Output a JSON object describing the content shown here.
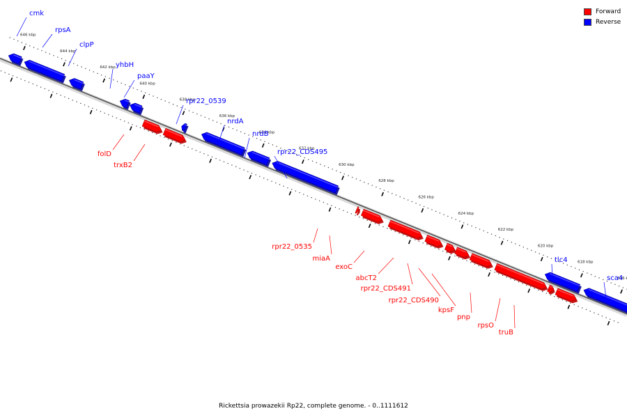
{
  "caption": "Rickettsia prowazekii Rp22, complete genome. - 0..1111612",
  "legend": [
    {
      "label": "Forward",
      "color": "#ff0000"
    },
    {
      "label": "Reverse",
      "color": "#0000ff"
    }
  ],
  "colors": {
    "forward": "#ff0000",
    "reverse": "#0000ff",
    "axis": "#555555"
  },
  "ticks": [
    {
      "kbp": 646,
      "label": "646 kbp"
    },
    {
      "kbp": 644,
      "label": "644 kbp"
    },
    {
      "kbp": 642,
      "label": "642 kbp"
    },
    {
      "kbp": 640,
      "label": "640 kbp"
    },
    {
      "kbp": 638,
      "label": "638 kbp"
    },
    {
      "kbp": 636,
      "label": "636 kbp"
    },
    {
      "kbp": 634,
      "label": "634 kbp"
    },
    {
      "kbp": 632,
      "label": "632 kbp"
    },
    {
      "kbp": 630,
      "label": "630 kbp"
    },
    {
      "kbp": 628,
      "label": "628 kbp"
    },
    {
      "kbp": 626,
      "label": "626 kbp"
    },
    {
      "kbp": 624,
      "label": "624 kbp"
    },
    {
      "kbp": 622,
      "label": "622 kbp"
    },
    {
      "kbp": 620,
      "label": "620 kbp"
    },
    {
      "kbp": 618,
      "label": "618 kbp"
    },
    {
      "kbp": 616,
      "label": "616 kbp"
    }
  ],
  "genes": [
    {
      "name": "cmk",
      "strand": "reverse",
      "start_kbp": 646.55,
      "end_kbp": 645.95
    },
    {
      "name": "rpsA",
      "strand": "reverse",
      "start_kbp": 645.75,
      "end_kbp": 643.8
    },
    {
      "name": "clpP",
      "strand": "reverse",
      "start_kbp": 643.5,
      "end_kbp": 642.85
    },
    {
      "name": "yhbH",
      "strand": "reverse",
      "start_kbp": 640.95,
      "end_kbp": 640.55
    },
    {
      "name": "paaY",
      "strand": "reverse",
      "start_kbp": 640.45,
      "end_kbp": 639.9
    },
    {
      "name": "rpr22_0539",
      "strand": "reverse",
      "start_kbp": 637.85,
      "end_kbp": 637.65
    },
    {
      "name": "folD",
      "strand": "forward",
      "start_kbp": 639.55,
      "end_kbp": 638.65
    },
    {
      "name": "trxB2",
      "strand": "forward",
      "start_kbp": 638.5,
      "end_kbp": 637.45
    },
    {
      "name": "nrdA",
      "strand": "reverse",
      "start_kbp": 636.85,
      "end_kbp": 634.75
    },
    {
      "name": "nrdB",
      "strand": "reverse",
      "start_kbp": 634.55,
      "end_kbp": 633.5
    },
    {
      "name": "rpr22_CDS495",
      "strand": "reverse",
      "start_kbp": 633.3,
      "end_kbp": 630.05
    },
    {
      "name": "rpr22_0535",
      "strand": "forward",
      "start_kbp": 628.85,
      "end_kbp": 628.75
    },
    {
      "name": "miaA",
      "strand": "forward",
      "start_kbp": 628.55,
      "end_kbp": 627.55
    },
    {
      "name": "exoC",
      "strand": "forward",
      "start_kbp": 627.2,
      "end_kbp": 625.55
    },
    {
      "name": "abcT2",
      "strand": "forward",
      "start_kbp": 625.35,
      "end_kbp": 624.55
    },
    {
      "name": "rpr22_CDS491",
      "strand": "forward",
      "start_kbp": 624.35,
      "end_kbp": 623.9
    },
    {
      "name": "rpr22_CDS490",
      "strand": "forward",
      "start_kbp": 623.85,
      "end_kbp": 623.2
    },
    {
      "name": "kpsF",
      "strand": "forward",
      "start_kbp": 623.1,
      "end_kbp": 622.05
    },
    {
      "name": "pnp",
      "strand": "forward",
      "start_kbp": 621.85,
      "end_kbp": 619.3
    },
    {
      "name": "rpsO",
      "strand": "forward",
      "start_kbp": 619.2,
      "end_kbp": 618.95
    },
    {
      "name": "truB",
      "strand": "forward",
      "start_kbp": 618.8,
      "end_kbp": 617.8
    },
    {
      "name": "tlc4",
      "strand": "reverse",
      "start_kbp": 619.6,
      "end_kbp": 617.9
    },
    {
      "name": "sca4",
      "strand": "reverse",
      "start_kbp": 617.65,
      "end_kbp": 613.9
    }
  ]
}
